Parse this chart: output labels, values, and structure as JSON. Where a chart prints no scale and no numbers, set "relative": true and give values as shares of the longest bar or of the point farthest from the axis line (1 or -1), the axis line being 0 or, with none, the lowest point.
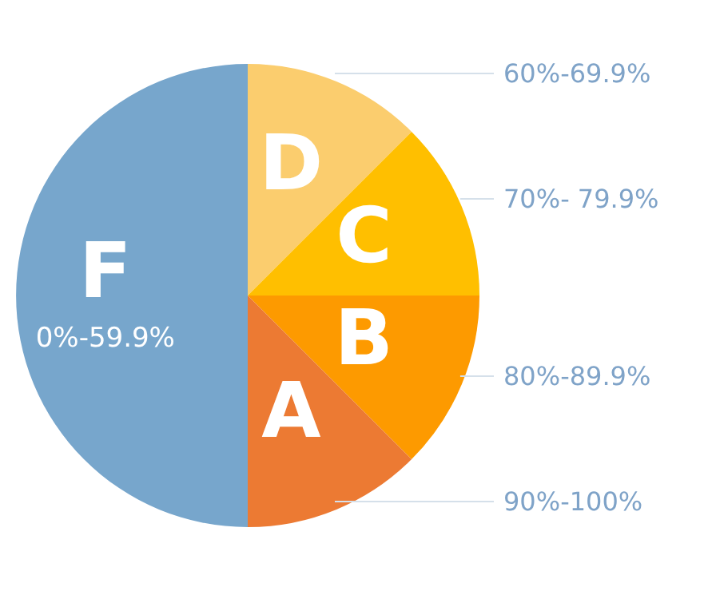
{
  "chart_data": {
    "type": "pie",
    "relative": true,
    "categories": [
      "D",
      "C",
      "B",
      "A",
      "F"
    ],
    "values": [
      12.5,
      12.5,
      12.5,
      12.5,
      50
    ],
    "colors": [
      "#fbcd6e",
      "#ffbf00",
      "#fd9a00",
      "#ec7a33",
      "#77a6cc"
    ],
    "annotations": [
      "60%-69.9%",
      "70%- 79.9%",
      "80%-89.9%",
      "90%-100%",
      "0%-59.9%"
    ],
    "legend": false
  }
}
